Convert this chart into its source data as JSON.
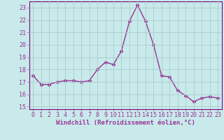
{
  "x": [
    0,
    1,
    2,
    3,
    4,
    5,
    6,
    7,
    8,
    9,
    10,
    11,
    12,
    13,
    14,
    15,
    16,
    17,
    18,
    19,
    20,
    21,
    22,
    23
  ],
  "y": [
    17.5,
    16.8,
    16.8,
    17.0,
    17.1,
    17.1,
    17.0,
    17.1,
    18.0,
    18.6,
    18.4,
    19.5,
    21.9,
    23.2,
    21.9,
    20.0,
    17.5,
    17.4,
    16.3,
    15.9,
    15.4,
    15.7,
    15.8,
    15.7
  ],
  "line_color": "#993399",
  "marker": "D",
  "marker_size": 2.5,
  "linewidth": 1.0,
  "xlabel": "Windchill (Refroidissement éolien,°C)",
  "ylim": [
    14.8,
    23.5
  ],
  "xlim": [
    -0.5,
    23.5
  ],
  "yticks": [
    15,
    16,
    17,
    18,
    19,
    20,
    21,
    22,
    23
  ],
  "xticks": [
    0,
    1,
    2,
    3,
    4,
    5,
    6,
    7,
    8,
    9,
    10,
    11,
    12,
    13,
    14,
    15,
    16,
    17,
    18,
    19,
    20,
    21,
    22,
    23
  ],
  "bg_color": "#c8eaea",
  "grid_color": "#c0d8d8",
  "spine_color": "#800080",
  "tick_color": "#993399",
  "label_color": "#993399",
  "xlabel_fontsize": 6.5,
  "tick_fontsize": 6.0
}
